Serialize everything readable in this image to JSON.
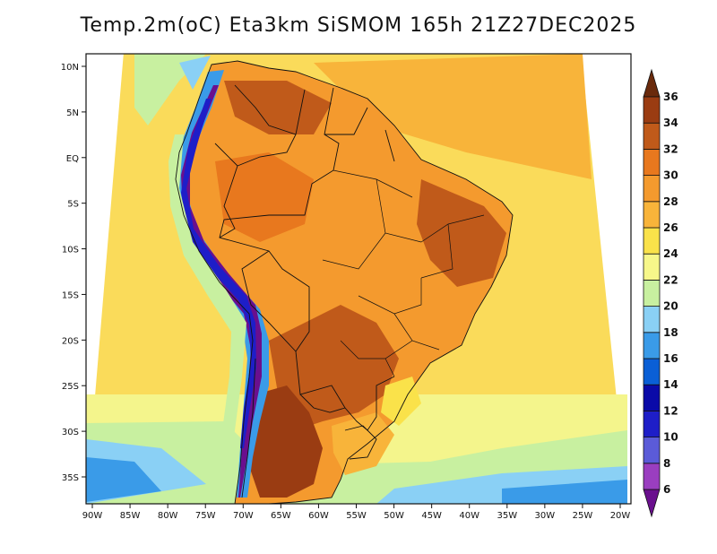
{
  "title": "Temp.2m(oC) Eta3km SiSMOM 165h 21Z27DEC2025",
  "map": {
    "variable": "Temp.2m(oC)",
    "model": "Eta3km SiSMOM",
    "forecast_hour": "165h",
    "valid_time": "21Z27DEC2025",
    "lon_ticks": [
      "90W",
      "85W",
      "80W",
      "75W",
      "70W",
      "65W",
      "60W",
      "55W",
      "50W",
      "45W",
      "40W",
      "35W",
      "30W",
      "25W",
      "20W"
    ],
    "lat_ticks": [
      "10N",
      "5N",
      "EQ",
      "5S",
      "10S",
      "15S",
      "20S",
      "25S",
      "30S",
      "35S"
    ]
  },
  "colorbar": {
    "levels": [
      "6",
      "8",
      "10",
      "12",
      "14",
      "16",
      "18",
      "20",
      "22",
      "24",
      "26",
      "28",
      "30",
      "32",
      "34",
      "36"
    ],
    "colors": [
      "#6a0f8e",
      "#9a3ec0",
      "#5b5bd8",
      "#1e1ec8",
      "#0a0aa8",
      "#0a5fd6",
      "#3a9be8",
      "#8ad0f5",
      "#c8f0a0",
      "#f7f78a",
      "#fae24a",
      "#f8b43a",
      "#f49a2e",
      "#e8781e",
      "#c05a1a",
      "#9a3c12",
      "#6a2a0c"
    ]
  }
}
